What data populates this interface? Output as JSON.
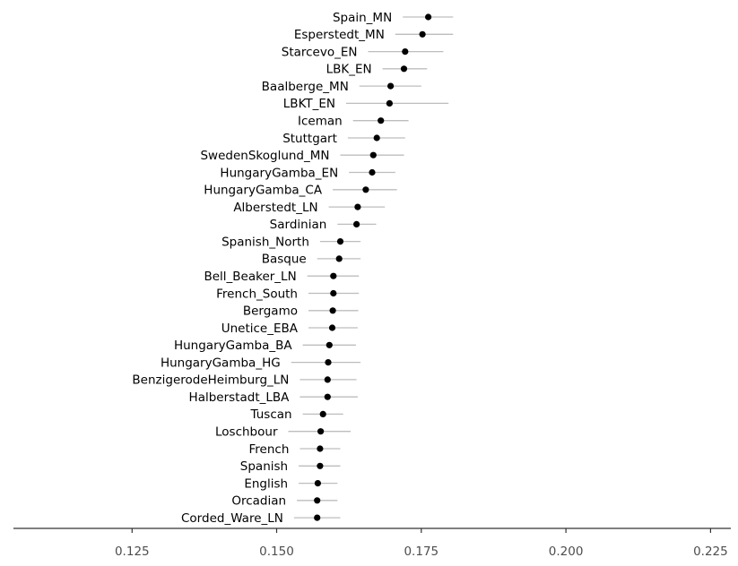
{
  "chart_data": {
    "type": "scatter",
    "orientation": "horizontal",
    "title": "",
    "xlabel": "",
    "ylabel": "",
    "xlim": [
      0.1045,
      0.2285
    ],
    "xticks": [
      0.125,
      0.15,
      0.175,
      0.2,
      0.225
    ],
    "xtick_labels": [
      "0.125",
      "0.150",
      "0.175",
      "0.200",
      "0.225"
    ],
    "grid": false,
    "legend": "none",
    "point_color": "#000000",
    "errorbar_color": "#bdbdbd",
    "series": [
      {
        "categories": [
          "Spain_MN",
          "Esperstedt_MN",
          "Starcevo_EN",
          "LBK_EN",
          "Baalberge_MN",
          "LBKT_EN",
          "Iceman",
          "Stuttgart",
          "SwedenSkoglund_MN",
          "HungaryGamba_EN",
          "HungaryGamba_CA",
          "Alberstedt_LN",
          "Sardinian",
          "Spanish_North",
          "Basque",
          "Bell_Beaker_LN",
          "French_South",
          "Bergamo",
          "Unetice_EBA",
          "HungaryGamba_BA",
          "HungaryGamba_HG",
          "BenzigerodeHeimburg_LN",
          "Halberstadt_LBA",
          "Tuscan",
          "Loschbour",
          "French",
          "Spanish",
          "English",
          "Orcadian",
          "Corded_Ware_LN"
        ],
        "values": [
          0.1762,
          0.1752,
          0.1722,
          0.172,
          0.1697,
          0.1695,
          0.168,
          0.1673,
          0.1667,
          0.1665,
          0.1654,
          0.164,
          0.1638,
          0.161,
          0.1608,
          0.1598,
          0.1598,
          0.1597,
          0.1596,
          0.1591,
          0.1589,
          0.1588,
          0.1588,
          0.158,
          0.1576,
          0.1575,
          0.1575,
          0.1571,
          0.157,
          0.157
        ],
        "lower": [
          0.1718,
          0.1705,
          0.1658,
          0.1683,
          0.1643,
          0.162,
          0.1632,
          0.1623,
          0.161,
          0.1625,
          0.1597,
          0.159,
          0.1605,
          0.1575,
          0.157,
          0.1553,
          0.1555,
          0.1555,
          0.1555,
          0.1545,
          0.1525,
          0.154,
          0.154,
          0.1545,
          0.152,
          0.154,
          0.1538,
          0.1538,
          0.1535,
          0.153
        ],
        "upper": [
          0.1805,
          0.1805,
          0.1788,
          0.176,
          0.175,
          0.1797,
          0.1728,
          0.1722,
          0.172,
          0.1705,
          0.1708,
          0.1687,
          0.1672,
          0.1645,
          0.1645,
          0.1642,
          0.1642,
          0.1641,
          0.164,
          0.1637,
          0.1645,
          0.1638,
          0.164,
          0.1615,
          0.1628,
          0.161,
          0.161,
          0.1605,
          0.1605,
          0.161
        ]
      }
    ]
  }
}
